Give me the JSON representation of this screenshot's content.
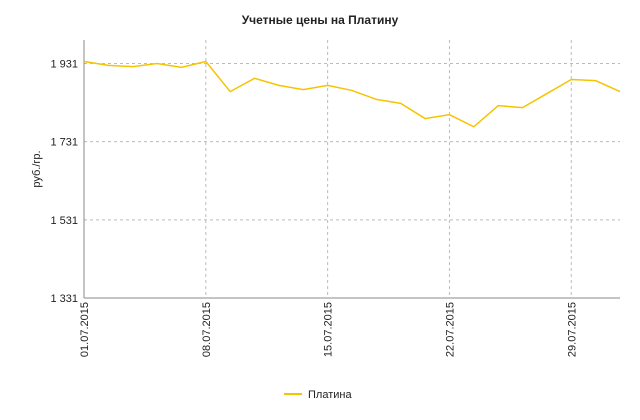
{
  "chart_data": {
    "type": "line",
    "title": "Учетные цены на Платину",
    "y_label": "руб./гр.",
    "categories": [
      "01.07.2015",
      null,
      null,
      null,
      null,
      "08.07.2015",
      null,
      null,
      null,
      null,
      "15.07.2015",
      null,
      null,
      null,
      null,
      "22.07.2015",
      null,
      null,
      null,
      null,
      "29.07.2015",
      null,
      null
    ],
    "series": [
      {
        "name": "Платина",
        "color": "#f5c400",
        "values": [
          1936,
          1926,
          1923,
          1931,
          1921,
          1936,
          1859,
          1893,
          1875,
          1864,
          1875,
          1862,
          1839,
          1829,
          1790,
          1800,
          1769,
          1823,
          1818,
          1854,
          1890,
          1887,
          1859
        ]
      }
    ],
    "ylim": [
      1331,
      1991
    ],
    "yticks": [
      {
        "value": 1331,
        "label": "1 331"
      },
      {
        "value": 1531,
        "label": "1 531"
      },
      {
        "value": 1731,
        "label": "1 731"
      },
      {
        "value": 1931,
        "label": "1 931"
      }
    ],
    "grid": true,
    "legend": "bottom"
  }
}
